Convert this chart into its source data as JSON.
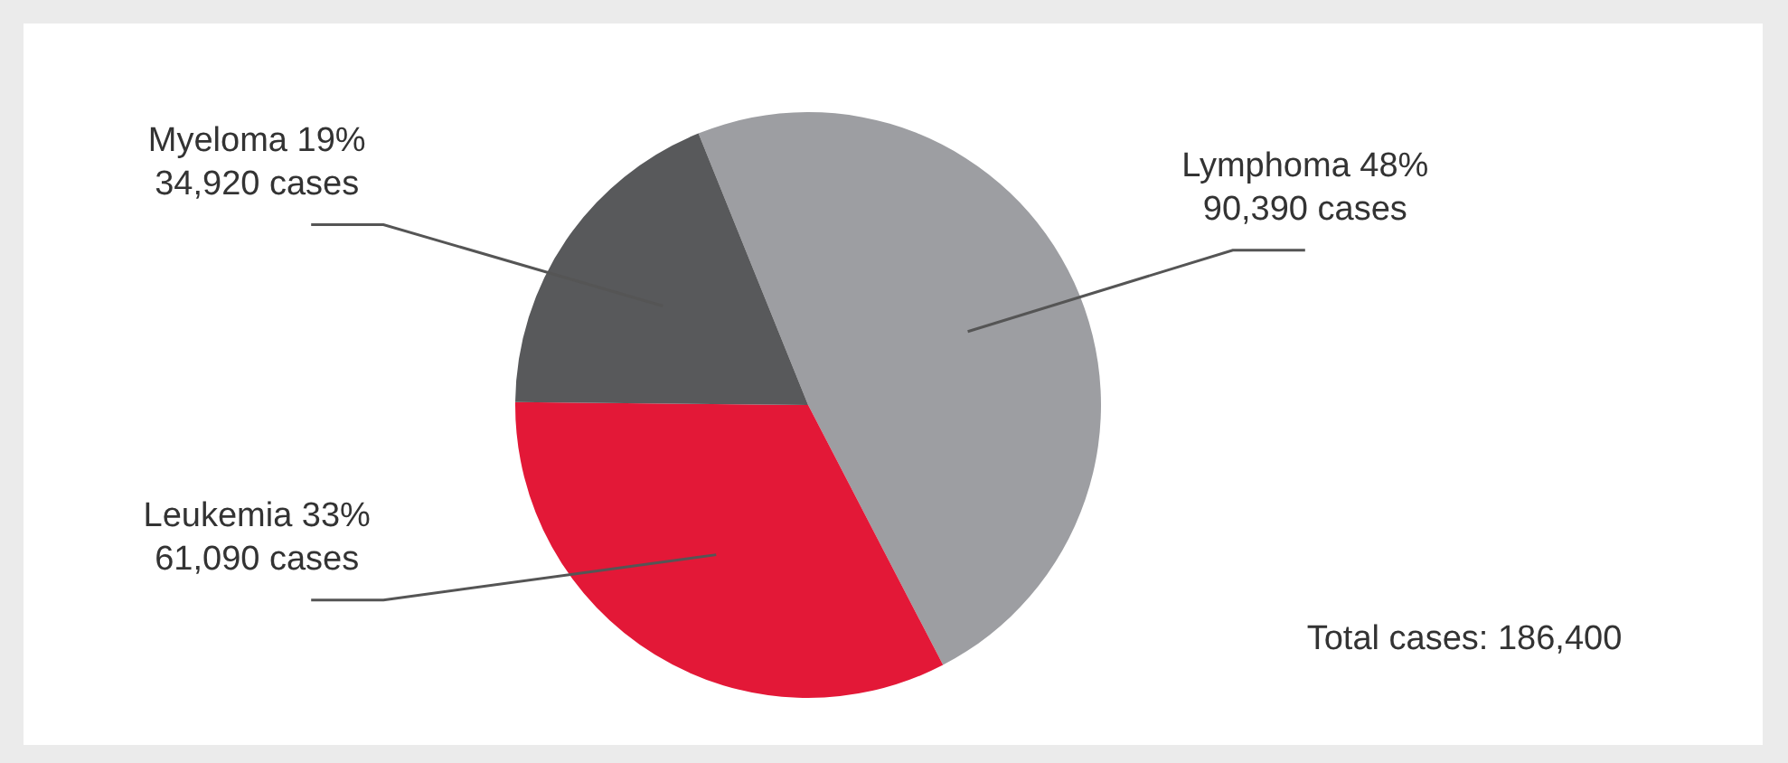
{
  "chart_data": {
    "type": "pie",
    "categories": [
      "Lymphoma",
      "Leukemia",
      "Myeloma"
    ],
    "values": [
      90390,
      61090,
      34920
    ],
    "colors": [
      "#9d9ea2",
      "#e31837",
      "#58595b"
    ],
    "value_labels": [
      "48%\n90,390 cases",
      "33%\n61,090 cases",
      "19%\n34,920 cases"
    ],
    "annotations": [
      "Total cases: 186,400"
    ],
    "legend": false
  }
}
